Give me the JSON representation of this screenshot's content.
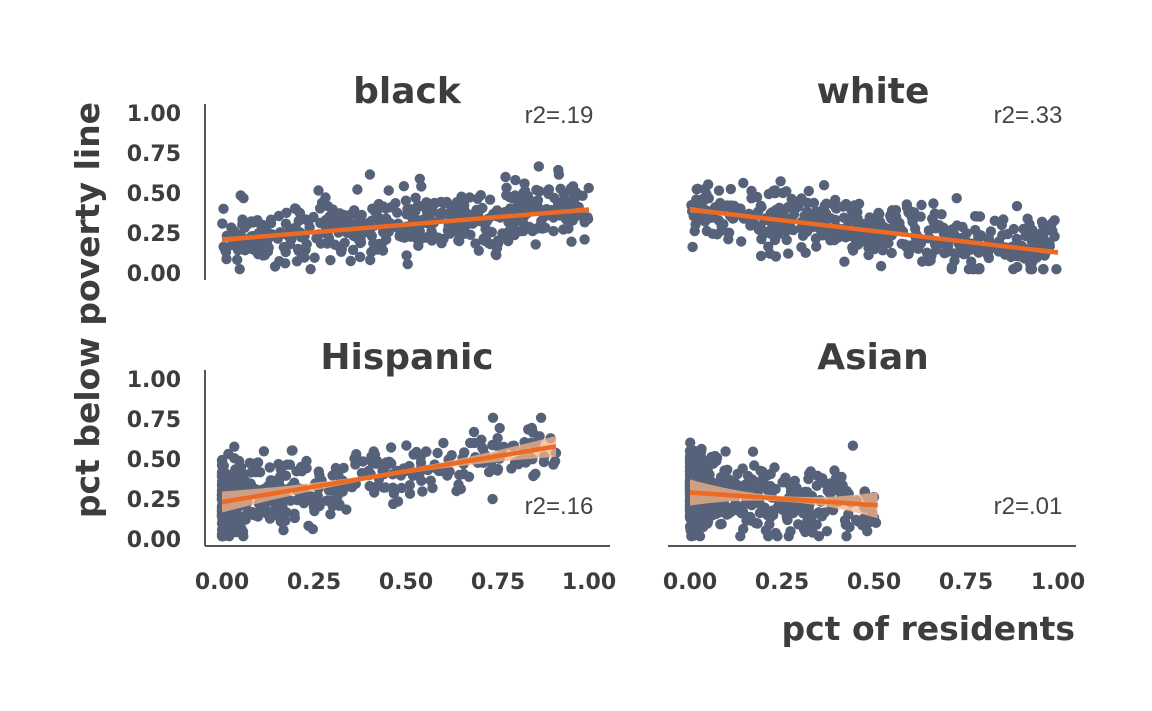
{
  "chart_data": {
    "type": "scatter",
    "layout": "2x2 small multiples, shared axes",
    "ylabel": "pct below poverty line",
    "xlabel": "pct of residents",
    "xlim": [
      0,
      1
    ],
    "ylim": [
      0,
      1
    ],
    "xticks": [
      "0.00",
      "0.25",
      "0.50",
      "0.75",
      "1.00"
    ],
    "yticks": [
      "0.00",
      "0.25",
      "0.50",
      "0.75",
      "1.00"
    ],
    "grid": false,
    "colors": {
      "points": "#56627a",
      "fit_line": "#ee6a22",
      "confidence_band": "#f6b489"
    },
    "panels": [
      {
        "title": "black",
        "r2_label": "r2=.19",
        "r2_position": "top-right",
        "fit": {
          "x0": 0.0,
          "y0": 0.19,
          "x1": 1.0,
          "y1": 0.38,
          "ci": 0.01
        },
        "points": {
          "x_range": [
            0.0,
            1.0
          ],
          "distribution": "uniform",
          "y_noise": 0.1,
          "count": 480
        }
      },
      {
        "title": "white",
        "r2_label": "r2=.33",
        "r2_position": "top-right",
        "fit": {
          "x0": 0.0,
          "y0": 0.38,
          "x1": 1.0,
          "y1": 0.11,
          "ci": 0.01
        },
        "points": {
          "x_range": [
            0.0,
            1.0
          ],
          "distribution": "uniform",
          "y_noise": 0.09,
          "count": 480
        }
      },
      {
        "title": "Hispanic",
        "r2_label": "r2=.16",
        "r2_position": "bottom-right",
        "fit": {
          "x0": 0.0,
          "y0": 0.22,
          "x1": 0.91,
          "y1": 0.57,
          "ci": 0.04
        },
        "points": {
          "x_range": [
            0.0,
            0.91
          ],
          "distribution": "skewed-low",
          "y_noise": 0.1,
          "count": 520
        }
      },
      {
        "title": "Asian",
        "r2_label": "r2=.01",
        "r2_position": "bottom-right",
        "fit": {
          "x0": 0.0,
          "y0": 0.28,
          "x1": 0.51,
          "y1": 0.2,
          "ci": 0.05
        },
        "points": {
          "x_range": [
            0.0,
            0.51
          ],
          "distribution": "skewed-low",
          "y_noise": 0.11,
          "count": 520
        }
      }
    ]
  }
}
